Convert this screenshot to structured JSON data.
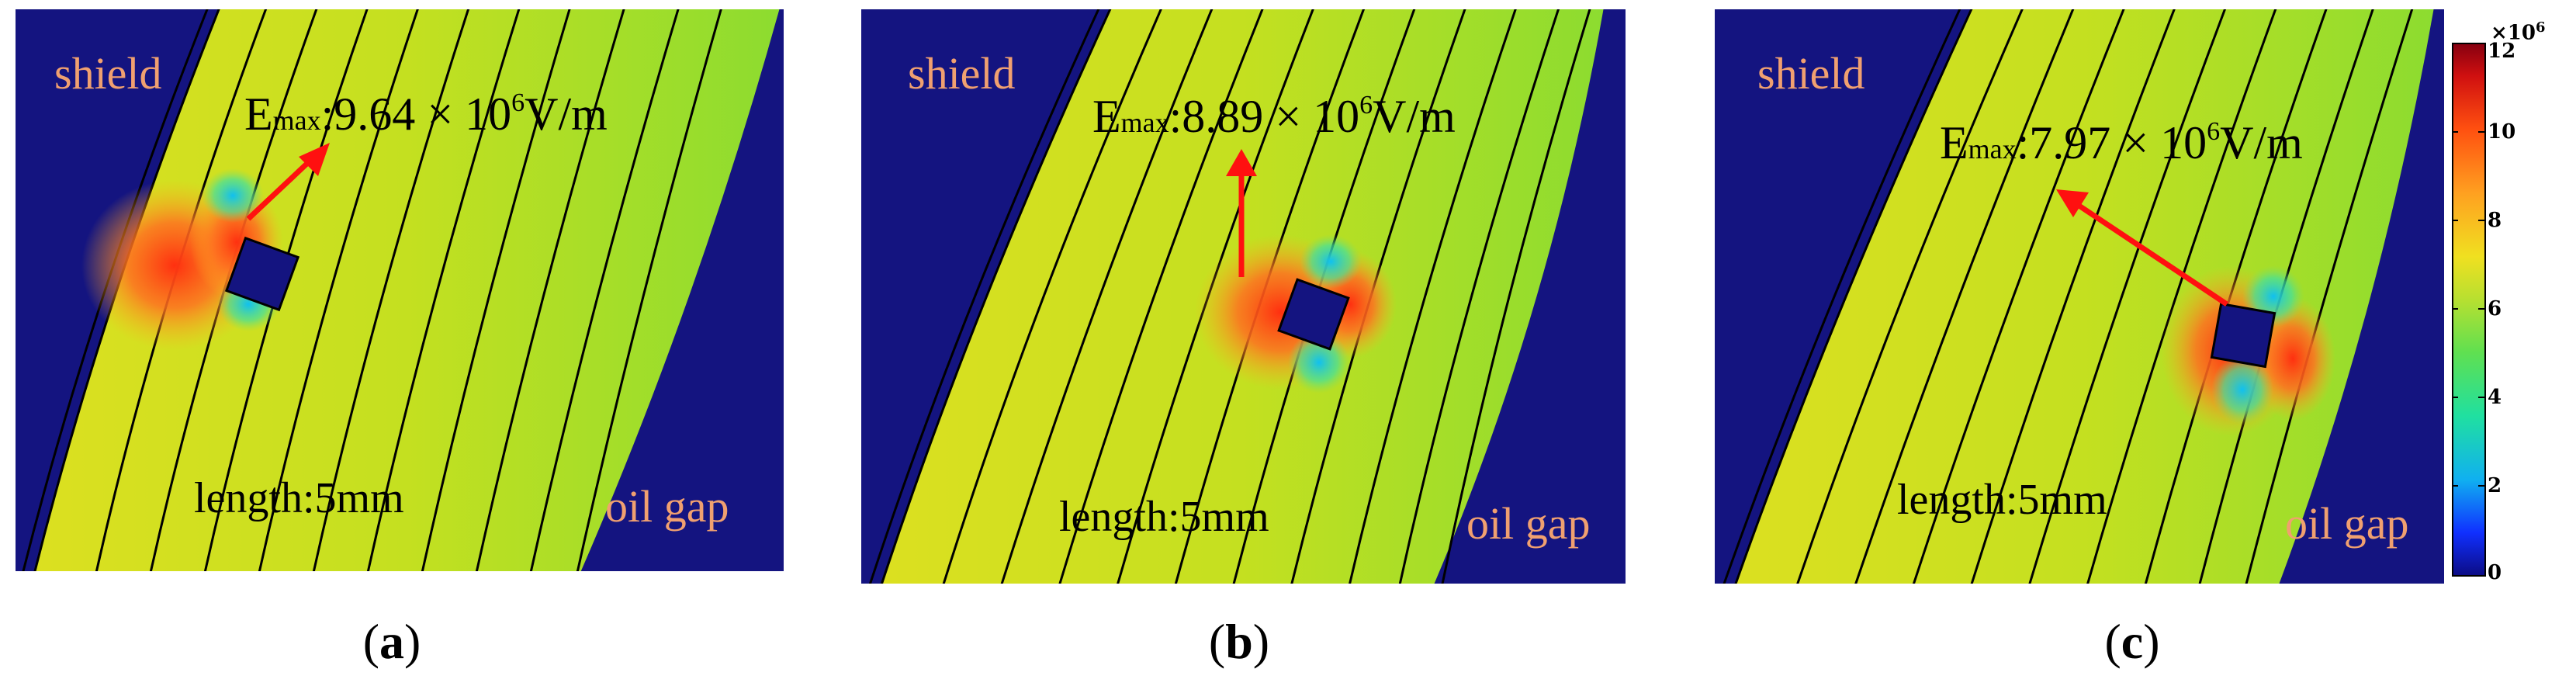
{
  "panels": [
    {
      "id": "a",
      "caption_letter": "a",
      "emax_prefix": "E",
      "emax_sub": "max",
      "emax_value": ":9.64",
      "emax_times": " × 10",
      "emax_exp": "6",
      "emax_unit": "V/m",
      "label_shield": "shield",
      "label_length": "length:5mm",
      "label_oil_gap": "oil gap"
    },
    {
      "id": "b",
      "caption_letter": "b",
      "emax_prefix": "E",
      "emax_sub": "max",
      "emax_value": ":8.89",
      "emax_times": " × 10",
      "emax_exp": "6",
      "emax_unit": "V/m",
      "label_shield": "shield",
      "label_length": "length:5mm",
      "label_oil_gap": "oil gap"
    },
    {
      "id": "c",
      "caption_letter": "c",
      "emax_prefix": "E",
      "emax_sub": "max",
      "emax_value": ":7.97",
      "emax_times": " × 10",
      "emax_exp": "6",
      "emax_unit": "V/m",
      "label_shield": "shield",
      "label_length": "length:5mm",
      "label_oil_gap": "oil gap"
    }
  ],
  "colorbar": {
    "exponent_label": "×10",
    "exponent_power": "6",
    "ticks": [
      "12",
      "10",
      "8",
      "6",
      "4",
      "2",
      "0"
    ]
  },
  "colors": {
    "background_dark": "#141480",
    "field_yellow": "#d4e020",
    "field_green": "#9cdc28",
    "label_orange": "#f0a070",
    "arrow": "#ff1010"
  }
}
